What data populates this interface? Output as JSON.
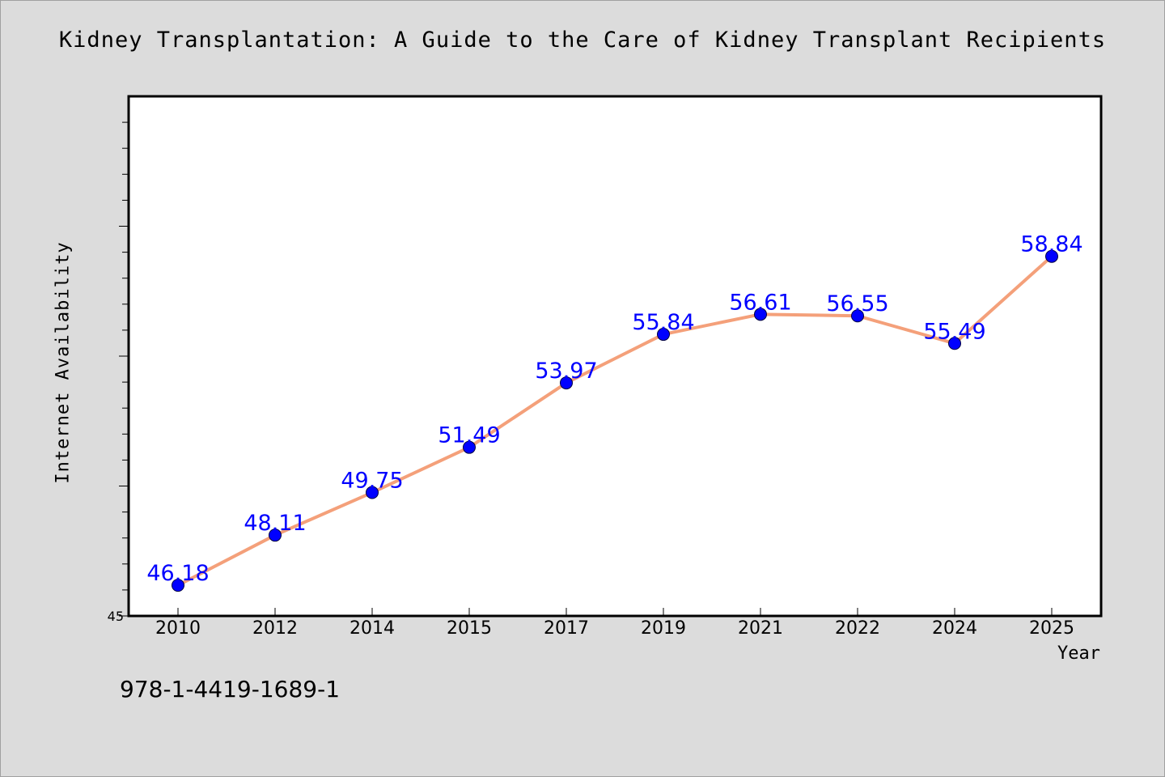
{
  "chart_data": {
    "type": "line",
    "title": "Kidney Transplantation: A Guide to the Care of Kidney Transplant Recipients",
    "xlabel": "Year",
    "ylabel": "Internet Availability",
    "categories": [
      "2010",
      "2012",
      "2014",
      "2015",
      "2017",
      "2019",
      "2021",
      "2022",
      "2024",
      "2025"
    ],
    "series": [
      {
        "values": [
          46.18,
          48.11,
          49.75,
          51.49,
          53.97,
          55.84,
          56.61,
          56.55,
          55.49,
          58.84
        ]
      }
    ],
    "data_labels": [
      "46.18",
      "48.11",
      "49.75",
      "51.49",
      "53.97",
      "55.84",
      "56.61",
      "56.55",
      "55.49",
      "58.84"
    ],
    "ylim": [
      45,
      65
    ],
    "y_tick_labels": [
      "45"
    ],
    "grid": false,
    "colors": {
      "line": "#f4a07a",
      "marker": "#0000ff",
      "label": "#0000ff",
      "plot_bg": "#ffffff",
      "page_bg": "#dcdcdc"
    }
  },
  "footer_note": "978-1-4419-1689-1"
}
